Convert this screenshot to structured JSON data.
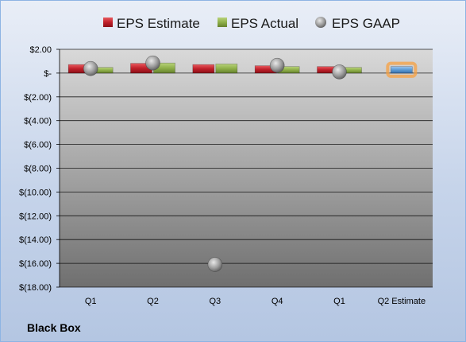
{
  "company": "Black Box",
  "colors": {
    "estimate": "#c0202a",
    "actual": "#8fb04a",
    "gaap": "#9a9a9a",
    "q2_estimate": "#5b9bd5",
    "q2_estimate_glow": "#f7a040"
  },
  "chart_data": {
    "type": "bar",
    "title": "",
    "xlabel": "",
    "ylabel": "",
    "ylim": [
      -18,
      2
    ],
    "yticks": [
      2,
      0,
      -2,
      -4,
      -6,
      -8,
      -10,
      -12,
      -14,
      -16,
      -18
    ],
    "ytick_labels": [
      "$2.00",
      "$-",
      "$(2.00)",
      "$(4.00)",
      "$(6.00)",
      "$(8.00)",
      "$(10.00)",
      "$(12.00)",
      "$(14.00)",
      "$(16.00)",
      "$(18.00)"
    ],
    "categories": [
      "Q1",
      "Q2",
      "Q3",
      "Q4",
      "Q1",
      "Q2 Estimate"
    ],
    "legend_position": "top",
    "grid": true,
    "series": [
      {
        "name": "EPS Estimate",
        "type": "bar",
        "values": [
          0.72,
          0.82,
          0.72,
          0.62,
          0.55,
          null
        ]
      },
      {
        "name": "EPS Actual",
        "type": "bar",
        "values": [
          0.48,
          0.85,
          0.77,
          0.55,
          0.48,
          null
        ]
      },
      {
        "name": "EPS GAAP",
        "type": "scatter",
        "values": [
          0.38,
          0.85,
          -16.1,
          0.65,
          0.1,
          null
        ]
      }
    ],
    "q2_estimate_value": 0.55
  }
}
